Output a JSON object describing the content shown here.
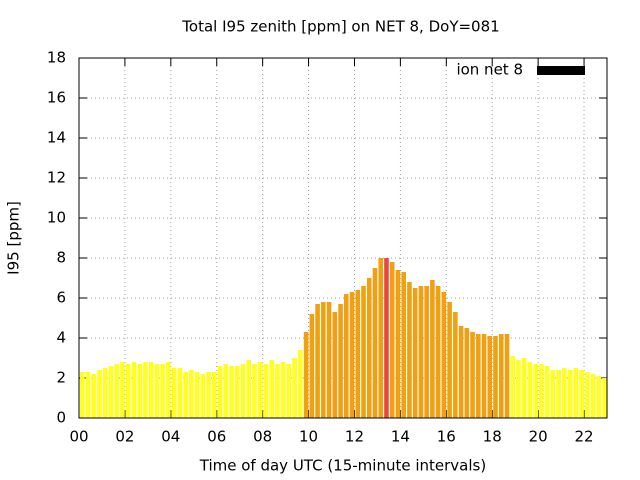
{
  "chart_data": {
    "type": "bar",
    "title": "Total I95 zenith [ppm] on NET 8, DoY=081",
    "x_label": "Time of day UTC (15-minute intervals)",
    "y_label": "I95 [ppm]",
    "x": [
      0,
      0.25,
      0.5,
      0.75,
      1,
      1.25,
      1.5,
      1.75,
      2,
      2.25,
      2.5,
      2.75,
      3,
      3.25,
      3.5,
      3.75,
      4,
      4.25,
      4.5,
      4.75,
      5,
      5.25,
      5.5,
      5.75,
      6,
      6.25,
      6.5,
      6.75,
      7,
      7.25,
      7.5,
      7.75,
      8,
      8.25,
      8.5,
      8.75,
      9,
      9.25,
      9.5,
      9.75,
      10,
      10.25,
      10.5,
      10.75,
      11,
      11.25,
      11.5,
      11.75,
      12,
      12.25,
      12.5,
      12.75,
      13,
      13.25,
      13.5,
      13.75,
      14,
      14.25,
      14.5,
      14.75,
      15,
      15.25,
      15.5,
      15.75,
      16,
      16.25,
      16.5,
      16.75,
      17,
      17.25,
      17.5,
      17.75,
      18,
      18.25,
      18.5,
      18.75,
      19,
      19.25,
      19.5,
      19.75,
      20,
      20.25,
      20.5,
      20.75,
      21,
      21.25,
      21.5,
      21.75,
      22,
      22.25,
      22.5,
      22.75
    ],
    "series": [
      {
        "name": "ion net 8",
        "color": "#000000",
        "values": [
          2.3,
          2.3,
          2.2,
          2.4,
          2.5,
          2.6,
          2.7,
          2.8,
          2.7,
          2.8,
          2.7,
          2.8,
          2.8,
          2.7,
          2.7,
          2.8,
          2.5,
          2.5,
          2.3,
          2.4,
          2.3,
          2.2,
          2.3,
          2.3,
          2.6,
          2.7,
          2.6,
          2.6,
          2.7,
          2.9,
          2.7,
          2.8,
          2.7,
          2.9,
          2.7,
          2.8,
          2.7,
          3.0,
          3.4,
          4.3,
          5.2,
          5.7,
          5.8,
          5.8,
          5.3,
          5.7,
          6.2,
          6.3,
          6.4,
          6.6,
          7.0,
          7.5,
          8.0,
          8.0,
          7.8,
          7.4,
          7.3,
          6.8,
          6.5,
          6.6,
          6.6,
          6.9,
          6.6,
          6.3,
          5.8,
          5.3,
          4.6,
          4.5,
          4.3,
          4.2,
          4.2,
          4.1,
          4.1,
          4.2,
          4.2,
          3.1,
          2.9,
          3.0,
          2.8,
          2.7,
          2.7,
          2.6,
          2.4,
          2.4,
          2.5,
          2.4,
          2.5,
          2.4,
          2.3,
          2.2,
          2.1,
          2.0
        ],
        "colors": [
          "#ffff20",
          "#ffff20",
          "#ffff20",
          "#ffff20",
          "#ffff20",
          "#ffff20",
          "#ffff20",
          "#ffff20",
          "#ffff20",
          "#ffff20",
          "#ffff20",
          "#ffff20",
          "#ffff20",
          "#ffff20",
          "#ffff20",
          "#ffff20",
          "#ffff20",
          "#ffff20",
          "#ffff20",
          "#ffff20",
          "#ffff20",
          "#ffff20",
          "#ffff20",
          "#ffff20",
          "#ffff20",
          "#ffff20",
          "#ffff20",
          "#ffff20",
          "#ffff20",
          "#ffff20",
          "#ffff20",
          "#ffff20",
          "#ffff20",
          "#ffff20",
          "#ffff20",
          "#ffff20",
          "#ffff20",
          "#ffff20",
          "#ffff20",
          "#f0a010",
          "#f0a010",
          "#f0a010",
          "#f0a010",
          "#f0a010",
          "#f0a010",
          "#f0a010",
          "#f0a010",
          "#f0a010",
          "#f0a010",
          "#f0a010",
          "#f0a010",
          "#f0a010",
          "#f0a010",
          "#e8483c",
          "#f0a010",
          "#f0a010",
          "#f0a010",
          "#f0a010",
          "#f0a010",
          "#f0a010",
          "#f0a010",
          "#f0a010",
          "#f0a010",
          "#f0a010",
          "#f0a010",
          "#f0a010",
          "#f0a010",
          "#f0a010",
          "#f0a010",
          "#f0a010",
          "#f0a010",
          "#f0a010",
          "#f0a010",
          "#f0a010",
          "#f0a010",
          "#ffff20",
          "#ffff20",
          "#ffff20",
          "#ffff20",
          "#ffff20",
          "#ffff20",
          "#ffff20",
          "#ffff20",
          "#ffff20",
          "#ffff20",
          "#ffff20",
          "#ffff20",
          "#ffff20",
          "#ffff20",
          "#ffff20",
          "#ffff20",
          "#ffff20"
        ]
      }
    ],
    "xlim": [
      0,
      23
    ],
    "xticks": [
      {
        "value": 0,
        "label": "00"
      },
      {
        "value": 2,
        "label": "02"
      },
      {
        "value": 4,
        "label": "04"
      },
      {
        "value": 6,
        "label": "06"
      },
      {
        "value": 8,
        "label": "08"
      },
      {
        "value": 10,
        "label": "10"
      },
      {
        "value": 12,
        "label": "12"
      },
      {
        "value": 14,
        "label": "14"
      },
      {
        "value": 16,
        "label": "16"
      },
      {
        "value": 18,
        "label": "18"
      },
      {
        "value": 20,
        "label": "20"
      },
      {
        "value": 22,
        "label": "22"
      }
    ],
    "ylim": [
      0,
      18
    ],
    "yticks": [
      0,
      2,
      4,
      6,
      8,
      10,
      12,
      14,
      16,
      18
    ],
    "bar_width": 0.2,
    "grid": true,
    "legend": "top-right"
  }
}
